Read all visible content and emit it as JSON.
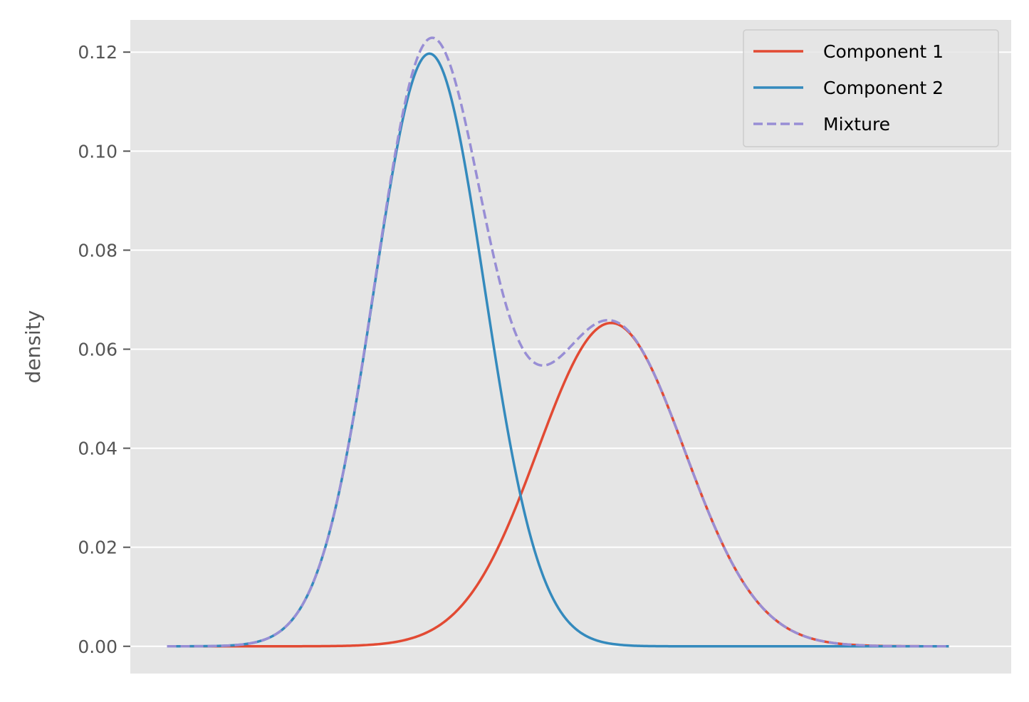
{
  "chart_data": {
    "type": "line",
    "title": "",
    "xlabel": "",
    "ylabel": "density",
    "ylim": [
      -0.0055,
      0.1265
    ],
    "xlim": [
      -1.0,
      23.0
    ],
    "x_range": [
      0,
      21.3
    ],
    "grid": true,
    "x_ticks_visible": false,
    "y_ticks": [
      "0.00",
      "0.02",
      "0.04",
      "0.06",
      "0.08",
      "0.10",
      "0.12"
    ],
    "legend_position": "top-right",
    "series": [
      {
        "name": "Component 1",
        "type": "normal",
        "mean": 12.1,
        "sd": 2.0,
        "peak_density": 0.0653,
        "color": "#E24A33",
        "style": "solid"
      },
      {
        "name": "Component 2",
        "type": "normal",
        "mean": 7.15,
        "sd": 1.5,
        "peak_density": 0.1197,
        "color": "#348ABD",
        "style": "solid"
      },
      {
        "name": "Mixture",
        "type": "sum",
        "components": [
          "Component 1",
          "Component 2"
        ],
        "color": "#988ED5",
        "style": "dashed"
      }
    ],
    "colors": {
      "plot_background": "#E5E5E5",
      "grid": "#FFFFFF",
      "legend_background": "#E5E5E5",
      "legend_border": "#CCCCCC"
    }
  }
}
